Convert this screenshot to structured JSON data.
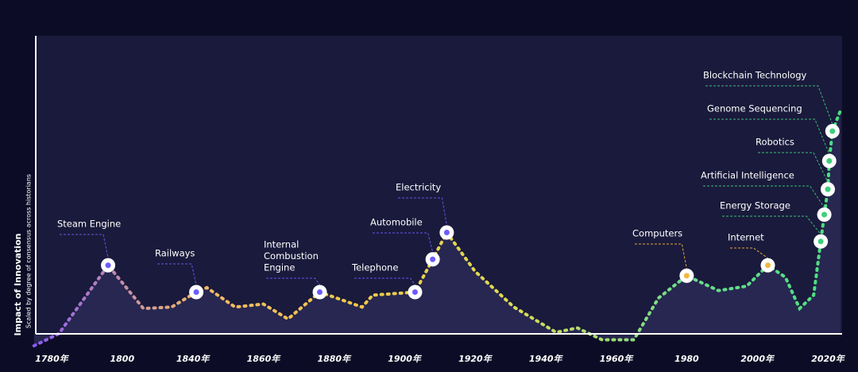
{
  "chart_data": {
    "type": "area",
    "ylabel": "Impact of Innovation",
    "ysublabel": "Scaled by degree of consensus across historians",
    "xlim": [
      1775,
      2024
    ],
    "ylim": [
      0,
      100
    ],
    "xticks": [
      {
        "value": 1780,
        "label": "1780年"
      },
      1800,
      {
        "value": 1840,
        "label": "1840年"
      },
      {
        "value": 1860,
        "label": "1860年"
      },
      {
        "value": 1880,
        "label": "1880年"
      },
      {
        "value": 1900,
        "label": "1900年"
      },
      {
        "value": 1920,
        "label": "1920年"
      },
      {
        "value": 1940,
        "label": "1940年"
      },
      {
        "value": 1960,
        "label": "1960年"
      },
      1980,
      {
        "value": 2000,
        "label": "2000年"
      },
      {
        "value": 2020,
        "label": "2020年"
      }
    ],
    "x": [
      1775,
      1782,
      1796,
      1812,
      1828,
      1841,
      1844,
      1852,
      1860,
      1867,
      1876,
      1888,
      1891,
      1903,
      1908,
      1912,
      1920,
      1931,
      1943,
      1949,
      1956,
      1965,
      1972,
      1980,
      1989,
      1997,
      2003,
      2008,
      2012,
      2016,
      2018,
      2019,
      2020,
      2020.4,
      2021.3,
      2023.6
    ],
    "series": [
      {
        "colors": [
          "#8b5cf6",
          "#f2b866",
          "#f0c94a",
          "#d9dc55",
          "#6fdc8c",
          "#4ade80"
        ],
        "values": [
          -4,
          0,
          23,
          8.5,
          9,
          14,
          15.5,
          9,
          10,
          5,
          14,
          9,
          13,
          14,
          25,
          34,
          21,
          9,
          0.5,
          2,
          -2,
          -2,
          12,
          19.5,
          14.5,
          16,
          23,
          19,
          8.5,
          13,
          31,
          40,
          48.5,
          58,
          68,
          75
        ]
      }
    ],
    "events": [
      {
        "label": "Steam Engine",
        "x": 1796,
        "y": 23,
        "color": "#6b5cff"
      },
      {
        "label": "Railways",
        "x": 1841,
        "y": 14,
        "color": "#6b5cff"
      },
      {
        "label": [
          "Internal",
          "Combustion",
          "Engine"
        ],
        "x": 1876,
        "y": 14,
        "color": "#6b5cff"
      },
      {
        "label": "Telephone",
        "x": 1903,
        "y": 14,
        "color": "#6b5cff"
      },
      {
        "label": "Automobile",
        "x": 1908,
        "y": 25,
        "color": "#6b5cff"
      },
      {
        "label": "Electricity",
        "x": 1912,
        "y": 34,
        "color": "#6b5cff"
      },
      {
        "label": "Computers",
        "x": 1980,
        "y": 19.5,
        "color": "#f0b840"
      },
      {
        "label": "Internet",
        "x": 2003,
        "y": 23,
        "color": "#f0b840"
      },
      {
        "label": "Energy Storage",
        "x": 2018,
        "y": 31,
        "color": "#3ecf7a"
      },
      {
        "label": "Artificial Intelligence",
        "x": 2019,
        "y": 40,
        "color": "#3ecf7a"
      },
      {
        "label": "Robotics",
        "x": 2020,
        "y": 48.5,
        "color": "#3ecf7a"
      },
      {
        "label": "Genome Sequencing",
        "x": 2020.4,
        "y": 58,
        "color": "#3ecf7a"
      },
      {
        "label": "Blockchain Technology",
        "x": 2021.3,
        "y": 68,
        "color": "#3ecf7a"
      }
    ]
  }
}
